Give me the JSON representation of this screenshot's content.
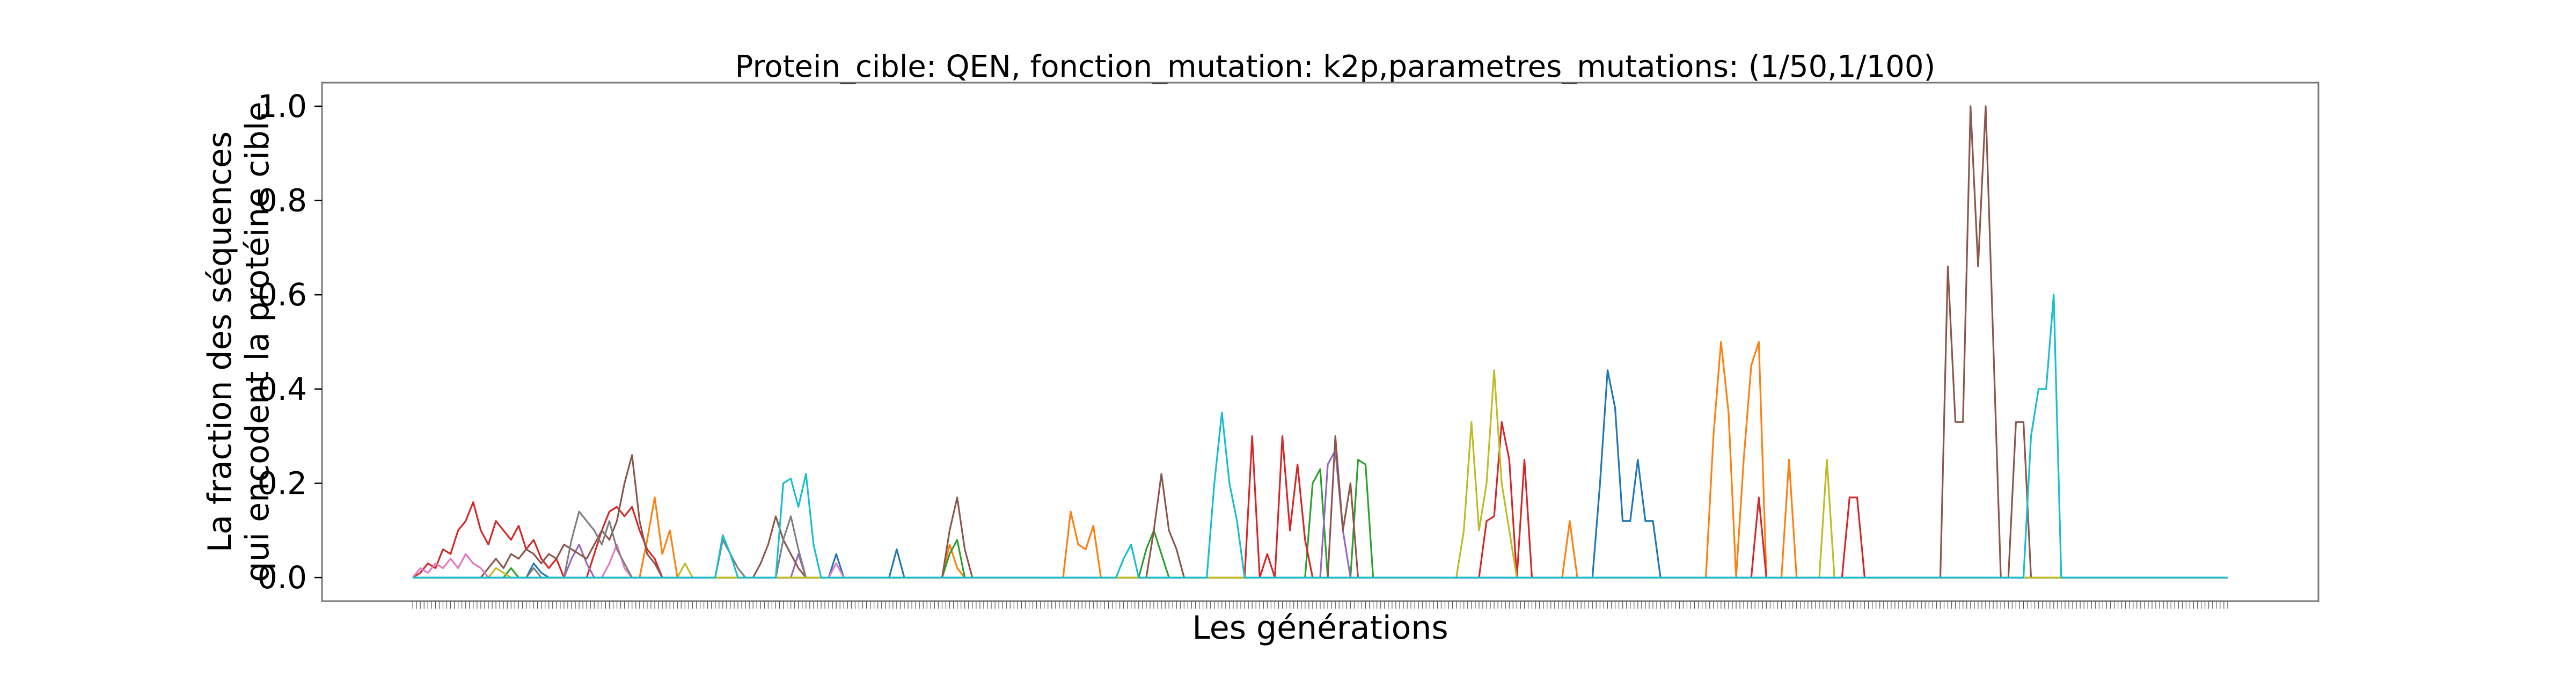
{
  "chart_data": {
    "type": "line",
    "title": "Protein_cible: QEN, fonction_mutation: k2p,parametres_mutations: (1/50,1/100)",
    "xlabel": "Les générations",
    "ylabel_lines": [
      "La fraction des séquences",
      "qui encodent la protéine cible"
    ],
    "ylim": [
      -0.05,
      1.05
    ],
    "xlim": [
      -24,
      504
    ],
    "yticks": [
      0.0,
      0.2,
      0.4,
      0.6,
      0.8,
      1.0
    ],
    "ytick_labels": [
      "0.0",
      "0.2",
      "0.4",
      "0.6",
      "0.8",
      "1.0"
    ],
    "x_ticks_count": 481,
    "grid": false,
    "legend": "none",
    "series": [
      {
        "color": "#1f77b4",
        "points": [
          [
            0,
            0
          ],
          [
            30,
            0
          ],
          [
            32,
            0.03
          ],
          [
            34,
            0.01
          ],
          [
            36,
            0
          ],
          [
            110,
            0
          ],
          [
            112,
            0.05
          ],
          [
            114,
            0
          ],
          [
            126,
            0
          ],
          [
            128,
            0.06
          ],
          [
            130,
            0
          ],
          [
            312,
            0
          ],
          [
            314,
            0.2
          ],
          [
            316,
            0.44
          ],
          [
            318,
            0.36
          ],
          [
            320,
            0.12
          ],
          [
            322,
            0.12
          ],
          [
            324,
            0.25
          ],
          [
            326,
            0.12
          ],
          [
            328,
            0.12
          ],
          [
            330,
            0
          ],
          [
            480,
            0
          ]
        ]
      },
      {
        "color": "#ff7f0e",
        "points": [
          [
            0,
            0
          ],
          [
            60,
            0
          ],
          [
            62,
            0.08
          ],
          [
            64,
            0.17
          ],
          [
            66,
            0.05
          ],
          [
            68,
            0.1
          ],
          [
            70,
            0
          ],
          [
            140,
            0
          ],
          [
            142,
            0.07
          ],
          [
            144,
            0.02
          ],
          [
            146,
            0
          ],
          [
            172,
            0
          ],
          [
            174,
            0.14
          ],
          [
            176,
            0.07
          ],
          [
            178,
            0.06
          ],
          [
            180,
            0.11
          ],
          [
            182,
            0
          ],
          [
            304,
            0
          ],
          [
            306,
            0.12
          ],
          [
            308,
            0
          ],
          [
            342,
            0
          ],
          [
            344,
            0.3
          ],
          [
            346,
            0.5
          ],
          [
            348,
            0.35
          ],
          [
            350,
            0
          ],
          [
            352,
            0.25
          ],
          [
            354,
            0.45
          ],
          [
            356,
            0.5
          ],
          [
            358,
            0
          ],
          [
            362,
            0
          ],
          [
            364,
            0.25
          ],
          [
            366,
            0
          ],
          [
            480,
            0
          ]
        ]
      },
      {
        "color": "#2ca02c",
        "points": [
          [
            0,
            0
          ],
          [
            24,
            0
          ],
          [
            26,
            0.02
          ],
          [
            28,
            0
          ],
          [
            140,
            0
          ],
          [
            142,
            0.05
          ],
          [
            144,
            0.08
          ],
          [
            146,
            0
          ],
          [
            192,
            0
          ],
          [
            194,
            0.06
          ],
          [
            196,
            0.1
          ],
          [
            198,
            0.05
          ],
          [
            200,
            0
          ],
          [
            236,
            0
          ],
          [
            238,
            0.2
          ],
          [
            240,
            0.23
          ],
          [
            242,
            0
          ],
          [
            248,
            0
          ],
          [
            250,
            0.25
          ],
          [
            252,
            0.24
          ],
          [
            254,
            0
          ],
          [
            480,
            0
          ]
        ]
      },
      {
        "color": "#d62728",
        "points": [
          [
            0,
            0
          ],
          [
            2,
            0.01
          ],
          [
            4,
            0.03
          ],
          [
            6,
            0.02
          ],
          [
            8,
            0.06
          ],
          [
            10,
            0.05
          ],
          [
            12,
            0.1
          ],
          [
            14,
            0.12
          ],
          [
            16,
            0.16
          ],
          [
            18,
            0.1
          ],
          [
            20,
            0.07
          ],
          [
            22,
            0.12
          ],
          [
            24,
            0.1
          ],
          [
            26,
            0.08
          ],
          [
            28,
            0.11
          ],
          [
            30,
            0.06
          ],
          [
            32,
            0.08
          ],
          [
            34,
            0.04
          ],
          [
            36,
            0.02
          ],
          [
            38,
            0.04
          ],
          [
            40,
            0
          ],
          [
            46,
            0
          ],
          [
            48,
            0.05
          ],
          [
            50,
            0.1
          ],
          [
            52,
            0.14
          ],
          [
            54,
            0.15
          ],
          [
            56,
            0.13
          ],
          [
            58,
            0.15
          ],
          [
            60,
            0.1
          ],
          [
            62,
            0.06
          ],
          [
            64,
            0.04
          ],
          [
            66,
            0
          ],
          [
            220,
            0
          ],
          [
            222,
            0.3
          ],
          [
            224,
            0
          ],
          [
            226,
            0.05
          ],
          [
            228,
            0
          ],
          [
            230,
            0.3
          ],
          [
            232,
            0.1
          ],
          [
            234,
            0.24
          ],
          [
            236,
            0.08
          ],
          [
            238,
            0
          ],
          [
            282,
            0
          ],
          [
            284,
            0.12
          ],
          [
            286,
            0.13
          ],
          [
            288,
            0.33
          ],
          [
            290,
            0.25
          ],
          [
            292,
            0
          ],
          [
            294,
            0.25
          ],
          [
            296,
            0
          ],
          [
            354,
            0
          ],
          [
            356,
            0.17
          ],
          [
            358,
            0
          ],
          [
            378,
            0
          ],
          [
            380,
            0.17
          ],
          [
            382,
            0.17
          ],
          [
            384,
            0
          ],
          [
            480,
            0
          ]
        ]
      },
      {
        "color": "#9467bd",
        "points": [
          [
            0,
            0
          ],
          [
            40,
            0
          ],
          [
            42,
            0.04
          ],
          [
            44,
            0.07
          ],
          [
            46,
            0.03
          ],
          [
            48,
            0
          ],
          [
            100,
            0
          ],
          [
            102,
            0.05
          ],
          [
            104,
            0
          ],
          [
            240,
            0
          ],
          [
            242,
            0.24
          ],
          [
            244,
            0.27
          ],
          [
            246,
            0.1
          ],
          [
            248,
            0
          ],
          [
            480,
            0
          ]
        ]
      },
      {
        "color": "#8c564b",
        "points": [
          [
            0,
            0
          ],
          [
            18,
            0
          ],
          [
            20,
            0.02
          ],
          [
            22,
            0.04
          ],
          [
            24,
            0.02
          ],
          [
            26,
            0.05
          ],
          [
            28,
            0.04
          ],
          [
            30,
            0.06
          ],
          [
            32,
            0.05
          ],
          [
            34,
            0.03
          ],
          [
            36,
            0.05
          ],
          [
            38,
            0.04
          ],
          [
            40,
            0.07
          ],
          [
            42,
            0.06
          ],
          [
            44,
            0.05
          ],
          [
            46,
            0.04
          ],
          [
            48,
            0.07
          ],
          [
            50,
            0.1
          ],
          [
            52,
            0.08
          ],
          [
            54,
            0.12
          ],
          [
            56,
            0.2
          ],
          [
            58,
            0.26
          ],
          [
            60,
            0.12
          ],
          [
            62,
            0.05
          ],
          [
            64,
            0.03
          ],
          [
            66,
            0
          ],
          [
            90,
            0
          ],
          [
            92,
            0.03
          ],
          [
            94,
            0.07
          ],
          [
            96,
            0.13
          ],
          [
            98,
            0.08
          ],
          [
            100,
            0.05
          ],
          [
            102,
            0.02
          ],
          [
            104,
            0
          ],
          [
            140,
            0
          ],
          [
            142,
            0.1
          ],
          [
            144,
            0.17
          ],
          [
            146,
            0.06
          ],
          [
            148,
            0
          ],
          [
            194,
            0
          ],
          [
            196,
            0.1
          ],
          [
            198,
            0.22
          ],
          [
            200,
            0.1
          ],
          [
            202,
            0.06
          ],
          [
            204,
            0
          ],
          [
            242,
            0
          ],
          [
            244,
            0.3
          ],
          [
            246,
            0.1
          ],
          [
            248,
            0.2
          ],
          [
            250,
            0
          ],
          [
            404,
            0
          ],
          [
            406,
            0.66
          ],
          [
            408,
            0.33
          ],
          [
            410,
            0.33
          ],
          [
            412,
            1.0
          ],
          [
            414,
            0.66
          ],
          [
            416,
            1.0
          ],
          [
            418,
            0.5
          ],
          [
            420,
            0
          ],
          [
            422,
            0
          ],
          [
            424,
            0.33
          ],
          [
            426,
            0.33
          ],
          [
            428,
            0
          ],
          [
            480,
            0
          ]
        ]
      },
      {
        "color": "#e377c2",
        "points": [
          [
            0,
            0
          ],
          [
            2,
            0.02
          ],
          [
            4,
            0.01
          ],
          [
            6,
            0.03
          ],
          [
            8,
            0.02
          ],
          [
            10,
            0.04
          ],
          [
            12,
            0.02
          ],
          [
            14,
            0.05
          ],
          [
            16,
            0.03
          ],
          [
            18,
            0.02
          ],
          [
            20,
            0
          ],
          [
            50,
            0
          ],
          [
            52,
            0.03
          ],
          [
            54,
            0.07
          ],
          [
            56,
            0.02
          ],
          [
            58,
            0
          ],
          [
            110,
            0
          ],
          [
            112,
            0.03
          ],
          [
            114,
            0
          ],
          [
            480,
            0
          ]
        ]
      },
      {
        "color": "#7f7f7f",
        "points": [
          [
            0,
            0
          ],
          [
            30,
            0
          ],
          [
            32,
            0.02
          ],
          [
            34,
            0
          ],
          [
            40,
            0
          ],
          [
            42,
            0.08
          ],
          [
            44,
            0.14
          ],
          [
            46,
            0.12
          ],
          [
            48,
            0.1
          ],
          [
            50,
            0.07
          ],
          [
            52,
            0.12
          ],
          [
            54,
            0.06
          ],
          [
            56,
            0.03
          ],
          [
            58,
            0
          ],
          [
            80,
            0
          ],
          [
            82,
            0.08
          ],
          [
            84,
            0.05
          ],
          [
            86,
            0.02
          ],
          [
            88,
            0
          ],
          [
            96,
            0
          ],
          [
            98,
            0.08
          ],
          [
            100,
            0.13
          ],
          [
            102,
            0.06
          ],
          [
            104,
            0
          ],
          [
            480,
            0
          ]
        ]
      },
      {
        "color": "#bcbd22",
        "points": [
          [
            0,
            0
          ],
          [
            20,
            0
          ],
          [
            22,
            0.02
          ],
          [
            24,
            0.01
          ],
          [
            26,
            0
          ],
          [
            70,
            0
          ],
          [
            72,
            0.03
          ],
          [
            74,
            0
          ],
          [
            276,
            0
          ],
          [
            278,
            0.1
          ],
          [
            280,
            0.33
          ],
          [
            282,
            0.1
          ],
          [
            284,
            0.2
          ],
          [
            286,
            0.44
          ],
          [
            288,
            0.2
          ],
          [
            290,
            0.1
          ],
          [
            292,
            0
          ],
          [
            372,
            0
          ],
          [
            374,
            0.25
          ],
          [
            376,
            0
          ],
          [
            480,
            0
          ]
        ]
      },
      {
        "color": "#17becf",
        "points": [
          [
            0,
            0
          ],
          [
            80,
            0
          ],
          [
            82,
            0.09
          ],
          [
            84,
            0.05
          ],
          [
            86,
            0
          ],
          [
            96,
            0
          ],
          [
            98,
            0.2
          ],
          [
            100,
            0.21
          ],
          [
            102,
            0.15
          ],
          [
            104,
            0.22
          ],
          [
            106,
            0.07
          ],
          [
            108,
            0
          ],
          [
            186,
            0
          ],
          [
            188,
            0.04
          ],
          [
            190,
            0.07
          ],
          [
            192,
            0
          ],
          [
            210,
            0
          ],
          [
            212,
            0.2
          ],
          [
            214,
            0.35
          ],
          [
            216,
            0.2
          ],
          [
            218,
            0.12
          ],
          [
            220,
            0
          ],
          [
            426,
            0
          ],
          [
            428,
            0.3
          ],
          [
            430,
            0.4
          ],
          [
            432,
            0.4
          ],
          [
            434,
            0.6
          ],
          [
            436,
            0
          ],
          [
            480,
            0
          ]
        ]
      }
    ]
  }
}
